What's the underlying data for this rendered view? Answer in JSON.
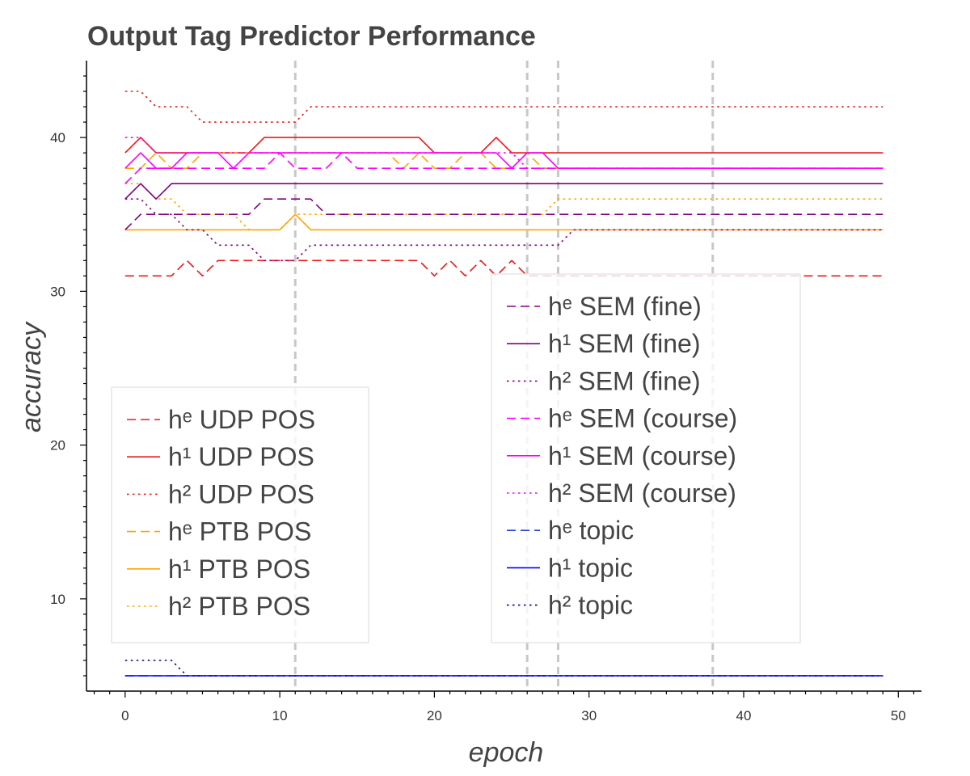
{
  "chart_data": {
    "type": "line",
    "title": "Output Tag Predictor Performance",
    "xlabel": "epoch",
    "ylabel": "accuracy",
    "xlim": [
      -2.5,
      51.5
    ],
    "ylim": [
      4,
      45
    ],
    "x_ticks": [
      0,
      10,
      20,
      30,
      40,
      50
    ],
    "y_ticks": [
      10,
      20,
      30,
      40
    ],
    "vertical_markers": [
      11,
      26,
      28,
      38
    ],
    "x": [
      0,
      1,
      2,
      3,
      4,
      5,
      6,
      7,
      8,
      9,
      10,
      11,
      12,
      13,
      14,
      15,
      16,
      17,
      18,
      19,
      20,
      21,
      22,
      23,
      24,
      25,
      26,
      27,
      28,
      29,
      30,
      31,
      32,
      33,
      34,
      35,
      36,
      37,
      38,
      39,
      40,
      41,
      42,
      43,
      44,
      45,
      46,
      47,
      48,
      49
    ],
    "series": [
      {
        "name": "hᵉ UDP POS",
        "color": "#e8191a",
        "style": "dashed",
        "values": [
          31,
          31,
          31,
          31,
          32,
          31,
          32,
          32,
          32,
          32,
          32,
          32,
          32,
          32,
          32,
          32,
          32,
          32,
          32,
          32,
          31,
          32,
          31,
          32,
          31,
          32,
          31,
          31,
          31,
          31,
          31,
          31,
          31,
          31,
          31,
          31,
          31,
          31,
          31,
          31,
          31,
          31,
          31,
          31,
          31,
          31,
          31,
          31,
          31,
          31
        ]
      },
      {
        "name": "h¹ UDP POS",
        "color": "#e8191a",
        "style": "solid",
        "values": [
          39,
          40,
          39,
          39,
          39,
          39,
          39,
          39,
          39,
          40,
          40,
          40,
          40,
          40,
          40,
          40,
          40,
          40,
          40,
          40,
          39,
          39,
          39,
          39,
          40,
          39,
          39,
          39,
          39,
          39,
          39,
          39,
          39,
          39,
          39,
          39,
          39,
          39,
          39,
          39,
          39,
          39,
          39,
          39,
          39,
          39,
          39,
          39,
          39,
          39
        ]
      },
      {
        "name": "h² UDP POS",
        "color": "#e8191a",
        "style": "dotted",
        "values": [
          43,
          43,
          42,
          42,
          42,
          41,
          41,
          41,
          41,
          41,
          41,
          41,
          42,
          42,
          42,
          42,
          42,
          42,
          42,
          42,
          42,
          42,
          42,
          42,
          42,
          42,
          42,
          42,
          42,
          42,
          42,
          42,
          42,
          42,
          42,
          42,
          42,
          42,
          42,
          42,
          42,
          42,
          42,
          42,
          42,
          42,
          42,
          42,
          42,
          42
        ]
      },
      {
        "name": "hᵉ PTB POS",
        "color": "#ffa500",
        "style": "dashed",
        "values": [
          38,
          38,
          39,
          38,
          38,
          39,
          39,
          39,
          39,
          39,
          39,
          39,
          39,
          39,
          39,
          39,
          39,
          39,
          38,
          39,
          38,
          38,
          39,
          39,
          38,
          38,
          39,
          38,
          38,
          38,
          38,
          38,
          38,
          38,
          38,
          38,
          38,
          38,
          38,
          38,
          38,
          38,
          38,
          38,
          38,
          38,
          38,
          38,
          38,
          38
        ]
      },
      {
        "name": "h¹ PTB POS",
        "color": "#ffa500",
        "style": "solid",
        "values": [
          34,
          34,
          34,
          34,
          34,
          34,
          34,
          34,
          34,
          34,
          34,
          35,
          34,
          34,
          34,
          34,
          34,
          34,
          34,
          34,
          34,
          34,
          34,
          34,
          34,
          34,
          34,
          34,
          34,
          34,
          34,
          34,
          34,
          34,
          34,
          34,
          34,
          34,
          34,
          34,
          34,
          34,
          34,
          34,
          34,
          34,
          34,
          34,
          34,
          34
        ]
      },
      {
        "name": "h² PTB POS",
        "color": "#ffa500",
        "style": "dotted",
        "values": [
          37,
          37,
          36,
          36,
          35,
          35,
          35,
          35,
          34,
          34,
          34,
          35,
          35,
          35,
          35,
          35,
          35,
          35,
          35,
          35,
          35,
          35,
          35,
          35,
          35,
          35,
          35,
          35,
          36,
          36,
          36,
          36,
          36,
          36,
          36,
          36,
          36,
          36,
          36,
          36,
          36,
          36,
          36,
          36,
          36,
          36,
          36,
          36,
          36,
          36
        ]
      },
      {
        "name": "hᵉ SEM (fine)",
        "color": "#800080",
        "style": "dashed",
        "values": [
          34,
          35,
          35,
          35,
          35,
          35,
          35,
          35,
          35,
          36,
          36,
          36,
          36,
          35,
          35,
          35,
          35,
          35,
          35,
          35,
          35,
          35,
          35,
          35,
          35,
          35,
          35,
          35,
          35,
          35,
          35,
          35,
          35,
          35,
          35,
          35,
          35,
          35,
          35,
          35,
          35,
          35,
          35,
          35,
          35,
          35,
          35,
          35,
          35,
          35
        ]
      },
      {
        "name": "h¹ SEM (fine)",
        "color": "#800080",
        "style": "solid",
        "values": [
          36,
          37,
          36,
          37,
          37,
          37,
          37,
          37,
          37,
          37,
          37,
          37,
          37,
          37,
          37,
          37,
          37,
          37,
          37,
          37,
          37,
          37,
          37,
          37,
          37,
          37,
          37,
          37,
          37,
          37,
          37,
          37,
          37,
          37,
          37,
          37,
          37,
          37,
          37,
          37,
          37,
          37,
          37,
          37,
          37,
          37,
          37,
          37,
          37,
          37
        ]
      },
      {
        "name": "h² SEM (fine)",
        "color": "#800080",
        "style": "dotted",
        "values": [
          36,
          36,
          35,
          35,
          34,
          34,
          33,
          33,
          33,
          32,
          32,
          32,
          33,
          33,
          33,
          33,
          33,
          33,
          33,
          33,
          33,
          33,
          33,
          33,
          33,
          33,
          33,
          33,
          33,
          34,
          34,
          34,
          34,
          34,
          34,
          34,
          34,
          34,
          34,
          34,
          34,
          34,
          34,
          34,
          34,
          34,
          34,
          34,
          34,
          34
        ]
      },
      {
        "name": "hᵉ SEM (course)",
        "color": "#ff00ff",
        "style": "dashed",
        "values": [
          37,
          38,
          38,
          38,
          38,
          38,
          38,
          38,
          38,
          38,
          39,
          38,
          38,
          38,
          39,
          38,
          38,
          38,
          38,
          38,
          38,
          38,
          38,
          38,
          38,
          38,
          38,
          38,
          38,
          38,
          38,
          38,
          38,
          38,
          38,
          38,
          38,
          38,
          38,
          38,
          38,
          38,
          38,
          38,
          38,
          38,
          38,
          38,
          38,
          38
        ]
      },
      {
        "name": "h¹ SEM (course)",
        "color": "#ff00ff",
        "style": "solid",
        "values": [
          38,
          39,
          38,
          38,
          39,
          39,
          39,
          38,
          39,
          39,
          39,
          39,
          39,
          39,
          39,
          39,
          39,
          39,
          39,
          39,
          39,
          39,
          39,
          39,
          39,
          38,
          39,
          39,
          38,
          38,
          38,
          38,
          38,
          38,
          38,
          38,
          38,
          38,
          38,
          38,
          38,
          38,
          38,
          38,
          38,
          38,
          38,
          38,
          38,
          38
        ]
      },
      {
        "name": "h² SEM (course)",
        "color": "#ff00ff",
        "style": "dotted",
        "values": [
          40,
          40,
          39,
          39,
          39,
          39,
          39,
          39,
          39,
          39,
          39,
          39,
          39,
          39,
          39,
          39,
          39,
          39,
          39,
          39,
          39,
          39,
          39,
          39,
          39,
          39,
          38,
          38,
          38,
          38,
          38,
          38,
          38,
          38,
          38,
          38,
          38,
          38,
          38,
          38,
          38,
          38,
          38,
          38,
          38,
          38,
          38,
          38,
          38,
          38
        ]
      },
      {
        "name": "hᵉ topic",
        "color": "#1f3fd8",
        "style": "dashed",
        "values": [
          5,
          5,
          5,
          5,
          5,
          5,
          5,
          5,
          5,
          5,
          5,
          5,
          5,
          5,
          5,
          5,
          5,
          5,
          5,
          5,
          5,
          5,
          5,
          5,
          5,
          5,
          5,
          5,
          5,
          5,
          5,
          5,
          5,
          5,
          5,
          5,
          5,
          5,
          5,
          5,
          5,
          5,
          5,
          5,
          5,
          5,
          5,
          5,
          5,
          5
        ]
      },
      {
        "name": "h¹ topic",
        "color": "#0000ff",
        "style": "solid",
        "values": [
          5,
          5,
          5,
          5,
          5,
          5,
          5,
          5,
          5,
          5,
          5,
          5,
          5,
          5,
          5,
          5,
          5,
          5,
          5,
          5,
          5,
          5,
          5,
          5,
          5,
          5,
          5,
          5,
          5,
          5,
          5,
          5,
          5,
          5,
          5,
          5,
          5,
          5,
          5,
          5,
          5,
          5,
          5,
          5,
          5,
          5,
          5,
          5,
          5,
          5
        ]
      },
      {
        "name": "h² topic",
        "color": "#00008b",
        "style": "dotted",
        "values": [
          6,
          6,
          6,
          6,
          5,
          5,
          5,
          5,
          5,
          5,
          5,
          5,
          5,
          5,
          5,
          5,
          5,
          5,
          5,
          5,
          5,
          5,
          5,
          5,
          5,
          5,
          5,
          5,
          5,
          5,
          5,
          5,
          5,
          5,
          5,
          5,
          5,
          5,
          5,
          5,
          5,
          5,
          5,
          5,
          5,
          5,
          5,
          5,
          5,
          5
        ]
      }
    ],
    "legends": [
      {
        "position": "lower-left",
        "entries": [
          0,
          1,
          2,
          3,
          4,
          5
        ]
      },
      {
        "position": "center-right",
        "entries": [
          6,
          7,
          8,
          9,
          10,
          11,
          12,
          13,
          14
        ]
      }
    ]
  }
}
